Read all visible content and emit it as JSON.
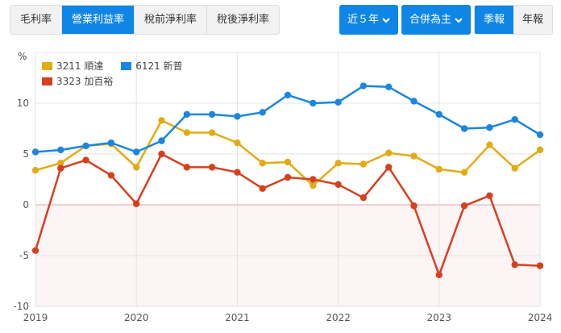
{
  "tabs": [
    {
      "label": "毛利率",
      "active": false
    },
    {
      "label": "營業利益率",
      "active": true
    },
    {
      "label": "稅前淨利率",
      "active": false
    },
    {
      "label": "稅後淨利率",
      "active": false
    }
  ],
  "controls": {
    "period_dropdown": "近５年",
    "basis_dropdown": "合併為主",
    "frequency": [
      {
        "label": "季報",
        "active": true
      },
      {
        "label": "年報",
        "active": false
      }
    ]
  },
  "colors": {
    "accent": "#0f86e5",
    "series_3211": "#e3ab12",
    "series_6121": "#1a86e0",
    "series_3323": "#d6401e"
  },
  "chart_data": {
    "type": "line",
    "title": "",
    "ylabel": "%",
    "xlabel": "",
    "ylim": [
      -10,
      10
    ],
    "yticks": [
      10,
      5,
      0,
      -5,
      -10
    ],
    "xticks": [
      "2019",
      "2020",
      "2021",
      "2022",
      "2023",
      "2024"
    ],
    "x": [
      "2019Q1",
      "2019Q2",
      "2019Q3",
      "2019Q4",
      "2020Q1",
      "2020Q2",
      "2020Q3",
      "2020Q4",
      "2021Q1",
      "2021Q2",
      "2021Q3",
      "2021Q4",
      "2022Q1",
      "2022Q2",
      "2022Q3",
      "2022Q4",
      "2023Q1",
      "2023Q2",
      "2023Q3",
      "2023Q4",
      "2024Q1"
    ],
    "legend_position": "top-left",
    "grid": true,
    "series": [
      {
        "name": "3211 順達",
        "color": "#e3ab12",
        "values": [
          3.4,
          4.1,
          5.8,
          6.0,
          3.7,
          8.3,
          7.1,
          7.1,
          6.1,
          4.1,
          4.2,
          1.9,
          4.1,
          4.0,
          5.1,
          4.8,
          3.5,
          3.2,
          5.9,
          3.6,
          5.4
        ]
      },
      {
        "name": "6121 新普",
        "color": "#1a86e0",
        "values": [
          5.2,
          5.4,
          5.8,
          6.1,
          5.2,
          6.3,
          8.9,
          8.9,
          8.7,
          9.1,
          10.8,
          10.0,
          10.1,
          11.7,
          11.6,
          10.2,
          8.9,
          7.5,
          7.6,
          8.4,
          6.9
        ]
      },
      {
        "name": "3323 加百裕",
        "color": "#d6401e",
        "values": [
          -4.5,
          3.6,
          4.4,
          2.9,
          0.1,
          5.0,
          3.7,
          3.7,
          3.2,
          1.6,
          2.7,
          2.5,
          2.0,
          0.7,
          3.7,
          -0.1,
          -6.9,
          -0.1,
          0.9,
          -5.9,
          -6.0
        ]
      }
    ]
  }
}
